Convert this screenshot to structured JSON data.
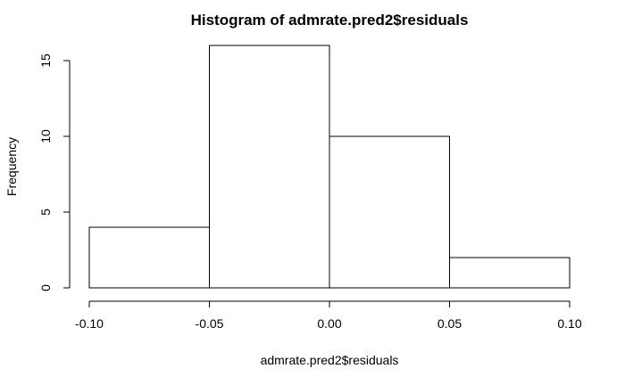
{
  "chart_data": {
    "type": "bar",
    "title": "Histogram of admrate.pred2$residuals",
    "xlabel": "admrate.pred2$residuals",
    "ylabel": "Frequency",
    "bins": [
      {
        "x0": -0.1,
        "x1": -0.05,
        "count": 4
      },
      {
        "x0": -0.05,
        "x1": 0.0,
        "count": 16
      },
      {
        "x0": 0.0,
        "x1": 0.05,
        "count": 10
      },
      {
        "x0": 0.05,
        "x1": 0.1,
        "count": 2
      }
    ],
    "xlim": [
      -0.1,
      0.1
    ],
    "ylim": [
      0,
      16
    ],
    "x_ticks": [
      -0.1,
      -0.05,
      0.0,
      0.05,
      0.1
    ],
    "x_tick_labels": [
      "-0.10",
      "-0.05",
      "0.00",
      "0.05",
      "0.10"
    ],
    "y_ticks": [
      0,
      5,
      10,
      15
    ],
    "y_tick_labels": [
      "0",
      "5",
      "10",
      "15"
    ],
    "grid": false,
    "bar_fill": "#ffffff",
    "bar_stroke": "#000000"
  }
}
